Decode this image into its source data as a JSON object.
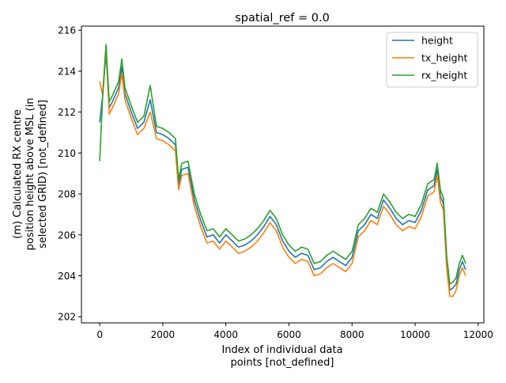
{
  "chart_data": {
    "type": "line",
    "title": "spatial_ref = 0.0",
    "xlabel": [
      "Index of individual data",
      "points [not_defined]"
    ],
    "ylabel": [
      "(m) Calculated RX centre",
      "position height above MSL (in",
      "selected GRID) [not_defined]"
    ],
    "xlim": [
      -580,
      12180
    ],
    "ylim": [
      201.7,
      216.2
    ],
    "xticks": [
      0,
      2000,
      4000,
      6000,
      8000,
      10000,
      12000
    ],
    "yticks": [
      202,
      204,
      206,
      208,
      210,
      212,
      214,
      216
    ],
    "grid": false,
    "legend_position": "top-right",
    "x": [
      0,
      100,
      200,
      300,
      400,
      600,
      700,
      800,
      1000,
      1200,
      1400,
      1600,
      1800,
      2000,
      2200,
      2400,
      2500,
      2600,
      2800,
      3000,
      3200,
      3400,
      3600,
      3800,
      4000,
      4200,
      4400,
      4600,
      4800,
      5000,
      5200,
      5400,
      5600,
      5800,
      6000,
      6200,
      6400,
      6600,
      6800,
      7000,
      7200,
      7400,
      7600,
      7800,
      8000,
      8200,
      8400,
      8600,
      8800,
      9000,
      9200,
      9400,
      9600,
      9800,
      10000,
      10200,
      10400,
      10600,
      10700,
      10800,
      10900,
      11000,
      11100,
      11200,
      11300,
      11400,
      11500,
      11600
    ],
    "series": [
      {
        "name": "height",
        "color": "#1f77b4",
        "values": [
          211.5,
          212.9,
          214.9,
          212.2,
          212.5,
          213.2,
          214.2,
          212.9,
          212.0,
          211.2,
          211.5,
          212.6,
          211.0,
          210.9,
          210.7,
          210.4,
          208.4,
          209.2,
          209.3,
          207.7,
          206.7,
          205.9,
          206.0,
          205.6,
          206.0,
          205.7,
          205.4,
          205.5,
          205.7,
          206.0,
          206.4,
          206.9,
          206.5,
          205.7,
          205.2,
          204.9,
          205.1,
          205.0,
          204.3,
          204.4,
          204.7,
          204.9,
          204.7,
          204.5,
          204.9,
          206.2,
          206.5,
          207.0,
          206.8,
          207.7,
          207.3,
          206.8,
          206.5,
          206.7,
          206.6,
          207.2,
          208.2,
          208.4,
          209.2,
          207.9,
          207.5,
          204.7,
          203.3,
          203.4,
          203.6,
          204.3,
          204.7,
          204.3
        ]
      },
      {
        "name": "tx_height",
        "color": "#ff7f0e",
        "values": [
          213.5,
          212.8,
          215.2,
          211.9,
          212.2,
          212.9,
          213.9,
          212.6,
          211.7,
          210.9,
          211.2,
          212.0,
          210.7,
          210.6,
          210.4,
          210.1,
          208.2,
          208.9,
          209.0,
          207.4,
          206.4,
          205.6,
          205.7,
          205.3,
          205.7,
          205.4,
          205.1,
          205.2,
          205.4,
          205.7,
          206.1,
          206.6,
          206.2,
          205.4,
          204.9,
          204.6,
          204.8,
          204.7,
          204.0,
          204.1,
          204.4,
          204.6,
          204.4,
          204.2,
          204.6,
          205.9,
          206.2,
          206.7,
          206.5,
          207.4,
          207.0,
          206.5,
          206.2,
          206.4,
          206.3,
          206.9,
          207.9,
          208.1,
          208.9,
          207.6,
          207.2,
          204.4,
          203.0,
          203.0,
          203.3,
          204.0,
          204.4,
          204.0
        ]
      },
      {
        "name": "rx_height",
        "color": "#2ca02c",
        "values": [
          209.6,
          213.0,
          215.3,
          212.5,
          212.8,
          213.5,
          214.6,
          213.2,
          212.3,
          211.5,
          211.8,
          213.3,
          211.3,
          211.2,
          211.0,
          210.7,
          208.7,
          209.5,
          209.6,
          208.0,
          207.0,
          206.2,
          206.3,
          205.9,
          206.3,
          206.0,
          205.7,
          205.8,
          206.0,
          206.3,
          206.7,
          207.2,
          206.8,
          206.0,
          205.5,
          205.2,
          205.4,
          205.3,
          204.6,
          204.7,
          205.0,
          205.2,
          205.0,
          204.8,
          205.2,
          206.5,
          206.8,
          207.3,
          207.1,
          208.0,
          207.6,
          207.1,
          206.8,
          207.0,
          206.9,
          207.5,
          208.5,
          208.7,
          209.5,
          208.2,
          207.8,
          205.0,
          203.6,
          203.7,
          203.9,
          204.6,
          205.0,
          204.6
        ]
      }
    ]
  }
}
